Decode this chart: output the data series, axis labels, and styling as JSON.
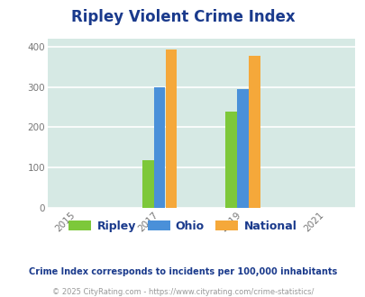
{
  "title": "Ripley Violent Crime Index",
  "plot_bg_color": "#d6e9e4",
  "figure_bg_color": "#ffffff",
  "bar_data": {
    "2017": {
      "Ripley": 118,
      "Ohio": 300,
      "National": 393
    },
    "2019": {
      "Ripley": 239,
      "Ohio": 294,
      "National": 378
    }
  },
  "colors": {
    "Ripley": "#7dc83a",
    "Ohio": "#4a90d9",
    "National": "#f5a83a"
  },
  "xticks": [
    2015,
    2017,
    2019,
    2021
  ],
  "ylim": [
    0,
    420
  ],
  "yticks": [
    0,
    100,
    200,
    300,
    400
  ],
  "legend_labels": [
    "Ripley",
    "Ohio",
    "National"
  ],
  "footnote1": "Crime Index corresponds to incidents per 100,000 inhabitants",
  "footnote2": "© 2025 CityRating.com - https://www.cityrating.com/crime-statistics/",
  "title_color": "#1a3a8c",
  "footnote1_color": "#1a3a8c",
  "footnote2_color": "#999999",
  "bar_width": 0.28
}
